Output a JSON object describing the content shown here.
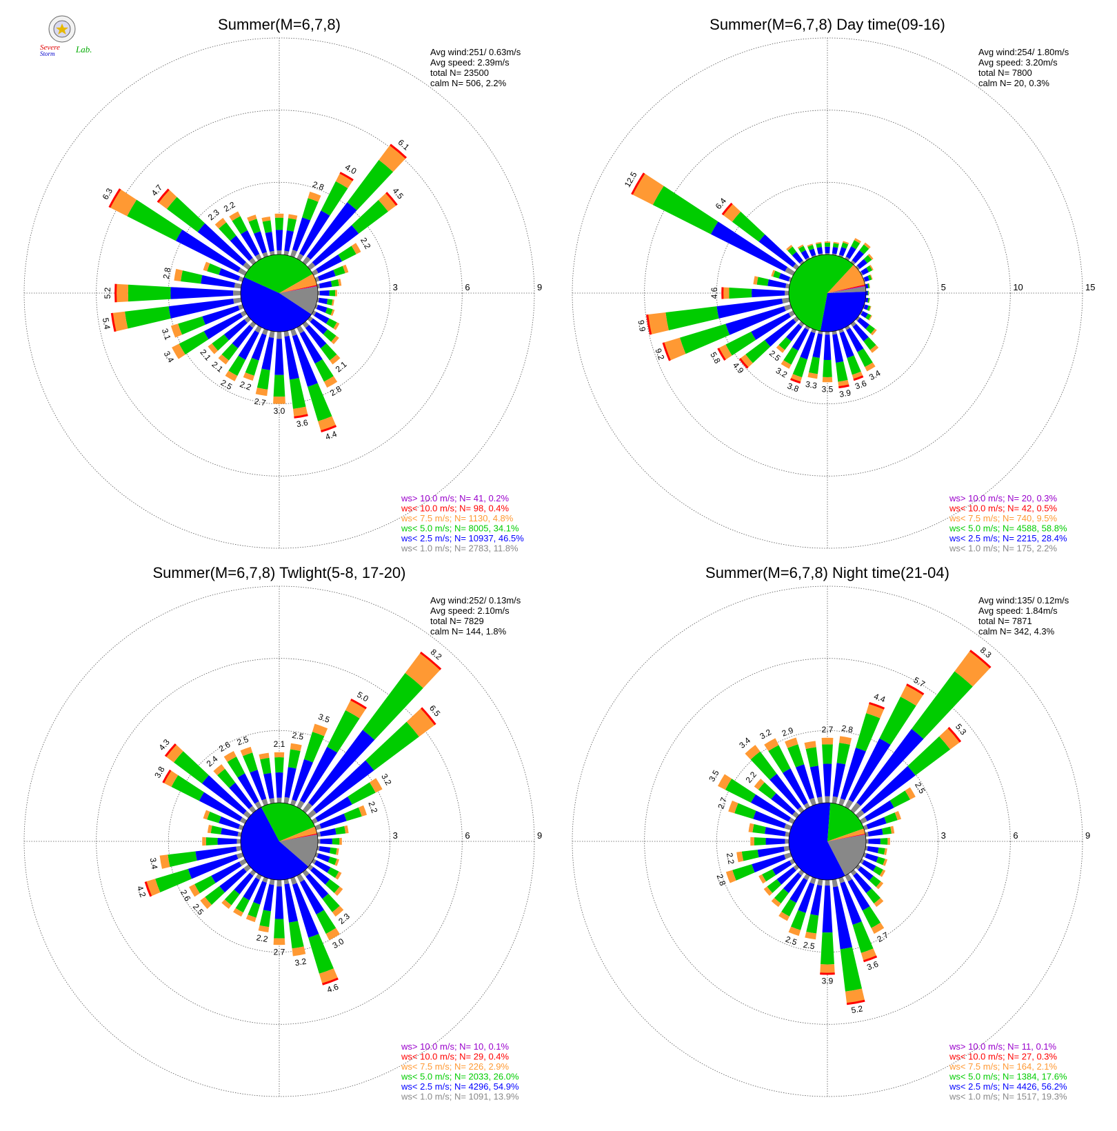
{
  "logo": {
    "text_a": "Severe",
    "text_b": "Storm",
    "text_c": "Lab."
  },
  "colors": {
    "ws_gt_10": "#9900cc",
    "ws_lt_10": "#ff0000",
    "ws_lt_7_5": "#ff9933",
    "ws_lt_5": "#00cc00",
    "ws_lt_2_5": "#0000ff",
    "ws_lt_1": "#888888"
  },
  "chart_data": [
    {
      "type": "windrose",
      "title": "Summer(M=6,7,8)",
      "rings": [
        "3",
        "6",
        "9"
      ],
      "ring_values": [
        3,
        6,
        9
      ],
      "rmax": 9,
      "stats": [
        "Avg wind:251/ 0.63m/s",
        "Avg speed: 2.39m/s",
        "total N=      23500",
        "calm N=    506,   2.2%"
      ],
      "legend": [
        {
          "label": "ws> 10.0 m/s; N=    41,  0.2%",
          "color": "#9900cc"
        },
        {
          "label": "ws< 10.0 m/s; N=    98,  0.4%",
          "color": "#ff0000"
        },
        {
          "label": "ws<  7.5 m/s; N=  1130,  4.8%",
          "color": "#ff9933"
        },
        {
          "label": "ws<  5.0 m/s; N=  8005, 34.1%",
          "color": "#00cc00"
        },
        {
          "label": "ws<  2.5 m/s; N= 10937, 46.5%",
          "color": "#0000ff"
        },
        {
          "label": "ws<  1.0 m/s; N=  2783, 11.8%",
          "color": "#888888"
        }
      ],
      "pie": [
        11.8,
        46.5,
        34.1,
        4.8,
        0.4,
        0.2
      ],
      "directions_deg": [
        0,
        10,
        20,
        30,
        40,
        50,
        60,
        70,
        80,
        90,
        100,
        110,
        120,
        130,
        140,
        150,
        160,
        170,
        180,
        190,
        200,
        210,
        220,
        230,
        240,
        250,
        260,
        270,
        280,
        290,
        300,
        310,
        320,
        330,
        340,
        350
      ],
      "totals": [
        1.7,
        1.7,
        2.8,
        4.0,
        6.1,
        4.5,
        2.2,
        1.4,
        1.0,
        0.8,
        0.7,
        0.8,
        1.2,
        1.5,
        2.1,
        2.8,
        4.4,
        3.6,
        3.0,
        2.7,
        2.2,
        2.5,
        2.1,
        2.1,
        3.4,
        3.1,
        5.4,
        5.2,
        2.8,
        1.7,
        6.3,
        4.7,
        2.3,
        2.2,
        1.8,
        1.6
      ],
      "bar_labels": [
        "",
        "",
        "2.8",
        "4.0",
        "6.1",
        "4.5",
        "2.2",
        "",
        "",
        "",
        "",
        "",
        "",
        "",
        "2.1",
        "2.8",
        "4.4",
        "3.6",
        "3.0",
        "2.7",
        "2.2",
        "2.5",
        "2.1",
        "2.1",
        "3.4",
        "3.1",
        "5.4",
        "5.2",
        "2.8",
        "",
        "6.3",
        "4.7",
        "2.3",
        "2.2",
        "",
        ""
      ]
    },
    {
      "type": "windrose",
      "title": "Summer(M=6,7,8) Day time(09-16)",
      "rings": [
        "5",
        "10",
        "15"
      ],
      "ring_values": [
        5,
        10,
        15
      ],
      "rmax": 15,
      "stats": [
        "Avg wind:254/ 1.80m/s",
        "Avg speed: 3.20m/s",
        "total N=       7800",
        "calm N=     20,   0.3%"
      ],
      "legend": [
        {
          "label": "ws> 10.0 m/s; N=    20,  0.3%",
          "color": "#9900cc"
        },
        {
          "label": "ws< 10.0 m/s; N=    42,  0.5%",
          "color": "#ff0000"
        },
        {
          "label": "ws<  7.5 m/s; N=   740,  9.5%",
          "color": "#ff9933"
        },
        {
          "label": "ws<  5.0 m/s; N=  4588, 58.8%",
          "color": "#00cc00"
        },
        {
          "label": "ws<  2.5 m/s; N=  2215, 28.4%",
          "color": "#0000ff"
        },
        {
          "label": "ws<  1.0 m/s; N=   175,  2.2%",
          "color": "#888888"
        }
      ],
      "pie": [
        2.2,
        28.4,
        58.8,
        9.5,
        0.5,
        0.3
      ],
      "directions_deg": [
        0,
        10,
        20,
        30,
        40,
        50,
        60,
        70,
        80,
        90,
        100,
        110,
        120,
        130,
        140,
        150,
        160,
        170,
        180,
        190,
        200,
        210,
        220,
        230,
        240,
        250,
        260,
        270,
        280,
        290,
        300,
        310,
        320,
        330,
        340,
        350
      ],
      "totals": [
        0.9,
        0.9,
        1.1,
        1.6,
        1.7,
        1.3,
        0.9,
        0.6,
        0.3,
        0.2,
        0.3,
        0.5,
        0.8,
        1.6,
        2.5,
        3.4,
        3.6,
        3.9,
        3.5,
        3.3,
        3.8,
        3.2,
        2.5,
        4.9,
        5.8,
        9.2,
        9.9,
        4.6,
        2.5,
        1.4,
        12.5,
        6.4,
        1.5,
        1.1,
        0.9,
        0.9
      ],
      "bar_labels": [
        "",
        "",
        "",
        "",
        "",
        "",
        "",
        "",
        "",
        "",
        "",
        "",
        "",
        "",
        "",
        "3.4",
        "3.6",
        "3.9",
        "3.5",
        "3.3",
        "3.8",
        "3.2",
        "2.5",
        "4.9",
        "5.8",
        "9.2",
        "9.9",
        "4.6",
        "",
        "",
        "12.5",
        "6.4",
        "",
        "",
        "",
        ""
      ]
    },
    {
      "type": "windrose",
      "title": "Summer(M=6,7,8) Twlight(5-8, 17-20)",
      "rings": [
        "3",
        "6",
        "9"
      ],
      "ring_values": [
        3,
        6,
        9
      ],
      "rmax": 9,
      "stats": [
        "Avg wind:252/ 0.13m/s",
        "Avg speed: 2.10m/s",
        "total N=       7829",
        "calm N=    144,   1.8%"
      ],
      "legend": [
        {
          "label": "ws> 10.0 m/s; N=    10,  0.1%",
          "color": "#9900cc"
        },
        {
          "label": "ws< 10.0 m/s; N=    29,  0.4%",
          "color": "#ff0000"
        },
        {
          "label": "ws<  7.5 m/s; N=   226,  2.9%",
          "color": "#ff9933"
        },
        {
          "label": "ws<  5.0 m/s; N=  2033, 26.0%",
          "color": "#00cc00"
        },
        {
          "label": "ws<  2.5 m/s; N=  4296, 54.9%",
          "color": "#0000ff"
        },
        {
          "label": "ws<  1.0 m/s; N=  1091, 13.9%",
          "color": "#888888"
        }
      ],
      "pie": [
        13.9,
        54.9,
        26.0,
        2.9,
        0.4,
        0.1
      ],
      "directions_deg": [
        0,
        10,
        20,
        30,
        40,
        50,
        60,
        70,
        80,
        90,
        100,
        110,
        120,
        130,
        140,
        150,
        160,
        170,
        180,
        190,
        200,
        210,
        220,
        230,
        240,
        250,
        260,
        270,
        280,
        290,
        300,
        310,
        320,
        330,
        340,
        350
      ],
      "totals": [
        2.1,
        2.5,
        3.5,
        5.0,
        8.2,
        6.5,
        3.2,
        2.2,
        1.3,
        1.0,
        0.9,
        1.0,
        1.3,
        1.7,
        2.3,
        3.0,
        4.6,
        3.2,
        2.7,
        2.2,
        1.9,
        1.9,
        1.9,
        2.5,
        2.6,
        4.2,
        3.4,
        1.6,
        1.4,
        1.7,
        3.8,
        4.3,
        2.4,
        2.6,
        2.5,
        2.1
      ],
      "bar_labels": [
        "2.1",
        "2.5",
        "3.5",
        "5.0",
        "8.2",
        "6.5",
        "3.2",
        "2.2",
        "",
        "",
        "",
        "",
        "",
        "",
        "2.3",
        "3.0",
        "4.6",
        "3.2",
        "2.7",
        "2.2",
        "",
        "",
        "",
        "2.5",
        "2.6",
        "4.2",
        "3.4",
        "",
        "",
        "",
        "3.8",
        "4.3",
        "2.4",
        "2.6",
        "2.5",
        ""
      ]
    },
    {
      "type": "windrose",
      "title": "Summer(M=6,7,8) Night time(21-04)",
      "rings": [
        "3",
        "6",
        "9"
      ],
      "ring_values": [
        3,
        6,
        9
      ],
      "rmax": 9,
      "stats": [
        "Avg wind:135/ 0.12m/s",
        "Avg speed: 1.84m/s",
        "total N=       7871",
        "calm N=    342,   4.3%"
      ],
      "legend": [
        {
          "label": "ws> 10.0 m/s; N=    11,  0.1%",
          "color": "#9900cc"
        },
        {
          "label": "ws< 10.0 m/s; N=    27,  0.3%",
          "color": "#ff0000"
        },
        {
          "label": "ws<  7.5 m/s; N=   164,  2.1%",
          "color": "#ff9933"
        },
        {
          "label": "ws<  5.0 m/s; N=  1384, 17.6%",
          "color": "#00cc00"
        },
        {
          "label": "ws<  2.5 m/s; N=  4426, 56.2%",
          "color": "#0000ff"
        },
        {
          "label": "ws<  1.0 m/s; N=  1517, 19.3%",
          "color": "#888888"
        }
      ],
      "pie": [
        19.3,
        56.2,
        17.6,
        2.1,
        0.3,
        0.1
      ],
      "directions_deg": [
        0,
        10,
        20,
        30,
        40,
        50,
        60,
        70,
        80,
        90,
        100,
        110,
        120,
        130,
        140,
        150,
        160,
        170,
        180,
        190,
        200,
        210,
        220,
        230,
        240,
        250,
        260,
        270,
        280,
        290,
        300,
        310,
        320,
        330,
        340,
        350
      ],
      "totals": [
        2.7,
        2.8,
        4.4,
        5.7,
        8.3,
        5.3,
        2.5,
        1.6,
        1.2,
        1.0,
        0.9,
        1.0,
        1.1,
        1.3,
        1.8,
        2.7,
        3.6,
        5.2,
        3.9,
        2.5,
        2.5,
        2.1,
        1.8,
        1.7,
        1.6,
        2.8,
        2.2,
        1.6,
        1.7,
        2.7,
        3.5,
        2.2,
        3.4,
        3.2,
        2.9,
        2.6
      ],
      "bar_labels": [
        "2.7",
        "2.8",
        "4.4",
        "5.7",
        "8.3",
        "5.3",
        "2.5",
        "",
        "",
        "",
        "",
        "",
        "",
        "",
        "",
        "2.7",
        "3.6",
        "5.2",
        "3.9",
        "2.5",
        "2.5",
        "",
        "",
        "",
        "",
        "2.8",
        "2.2",
        "",
        "",
        "2.7",
        "3.5",
        "2.2",
        "3.4",
        "3.2",
        "2.9",
        ""
      ]
    }
  ]
}
